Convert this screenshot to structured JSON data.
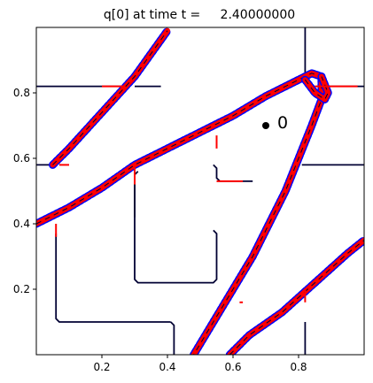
{
  "chart_data": {
    "type": "line",
    "title": "q[0] at time t =     2.40000000",
    "xlabel": "",
    "ylabel": "",
    "xlim": [
      0.0,
      1.0
    ],
    "ylim": [
      0.0,
      1.0
    ],
    "x_ticks": [
      0.2,
      0.4,
      0.6,
      0.8
    ],
    "x_tick_labels": [
      "0.2",
      "0.4",
      "0.6",
      "0.8"
    ],
    "y_ticks": [
      0.2,
      0.4,
      0.6,
      0.8
    ],
    "y_tick_labels": [
      "0.2",
      "0.4",
      "0.6",
      "0.8"
    ],
    "grid": false,
    "colors": {
      "contour_dark": "#000033",
      "contour_blue": "#0000ff",
      "contour_red": "#ff0000",
      "axes": "#000000"
    },
    "series": [
      {
        "style": "dark",
        "paths": [
          [
            [
              0.0,
              0.82
            ],
            [
              0.27,
              0.82
            ]
          ],
          [
            [
              0.3,
              0.82
            ],
            [
              0.38,
              0.82
            ]
          ],
          [
            [
              0.82,
              1.0
            ],
            [
              0.82,
              0.86
            ]
          ],
          [
            [
              0.89,
              0.82
            ],
            [
              1.0,
              0.82
            ]
          ],
          [
            [
              0.81,
              0.58
            ],
            [
              1.0,
              0.58
            ]
          ],
          [
            [
              0.54,
              0.38
            ],
            [
              0.55,
              0.37
            ],
            [
              0.55,
              0.23
            ],
            [
              0.54,
              0.22
            ],
            [
              0.31,
              0.22
            ],
            [
              0.3,
              0.23
            ],
            [
              0.3,
              0.57
            ]
          ],
          [
            [
              0.54,
              0.58
            ],
            [
              0.55,
              0.57
            ],
            [
              0.55,
              0.54
            ],
            [
              0.56,
              0.53
            ],
            [
              0.66,
              0.53
            ]
          ],
          [
            [
              0.31,
              0.56
            ],
            [
              0.3,
              0.55
            ],
            [
              0.3,
              0.42
            ]
          ],
          [
            [
              0.41,
              0.1
            ],
            [
              0.07,
              0.1
            ],
            [
              0.06,
              0.11
            ],
            [
              0.06,
              0.37
            ]
          ],
          [
            [
              0.82,
              0.0
            ],
            [
              0.82,
              0.1
            ]
          ],
          [
            [
              0.41,
              0.1
            ],
            [
              0.42,
              0.09
            ],
            [
              0.42,
              0.0
            ]
          ],
          [
            [
              0.0,
              0.58
            ],
            [
              0.05,
              0.58
            ],
            [
              0.1,
              0.62
            ],
            [
              0.2,
              0.73
            ],
            [
              0.29,
              0.84
            ],
            [
              0.4,
              0.99
            ]
          ]
        ]
      },
      {
        "style": "band",
        "paths": [
          [
            [
              0.0,
              0.4
            ],
            [
              0.1,
              0.45
            ],
            [
              0.2,
              0.51
            ],
            [
              0.3,
              0.58
            ],
            [
              0.4,
              0.63
            ],
            [
              0.5,
              0.68
            ],
            [
              0.6,
              0.73
            ],
            [
              0.7,
              0.79
            ],
            [
              0.78,
              0.83
            ],
            [
              0.84,
              0.86
            ],
            [
              0.87,
              0.85
            ],
            [
              0.87,
              0.78
            ],
            [
              0.84,
              0.7
            ],
            [
              0.8,
              0.6
            ],
            [
              0.76,
              0.5
            ],
            [
              0.71,
              0.4
            ],
            [
              0.66,
              0.3
            ],
            [
              0.6,
              0.2
            ],
            [
              0.54,
              0.1
            ],
            [
              0.48,
              0.0
            ]
          ],
          [
            [
              0.82,
              0.84
            ],
            [
              0.85,
              0.8
            ],
            [
              0.88,
              0.78
            ],
            [
              0.89,
              0.8
            ],
            [
              0.87,
              0.85
            ]
          ],
          [
            [
              0.05,
              0.58
            ],
            [
              0.1,
              0.63
            ],
            [
              0.2,
              0.74
            ],
            [
              0.3,
              0.85
            ],
            [
              0.4,
              0.99
            ]
          ],
          [
            [
              0.59,
              0.0
            ],
            [
              0.65,
              0.06
            ],
            [
              0.75,
              0.13
            ],
            [
              0.85,
              0.22
            ],
            [
              0.95,
              0.31
            ],
            [
              1.0,
              0.35
            ]
          ]
        ]
      },
      {
        "style": "red",
        "paths": [
          [
            [
              0.2,
              0.82
            ],
            [
              0.27,
              0.82
            ]
          ],
          [
            [
              0.85,
              0.82
            ],
            [
              0.98,
              0.82
            ]
          ],
          [
            [
              0.55,
              0.53
            ],
            [
              0.63,
              0.53
            ]
          ],
          [
            [
              0.07,
              0.58
            ],
            [
              0.1,
              0.58
            ]
          ],
          [
            [
              0.55,
              0.67
            ],
            [
              0.55,
              0.63
            ]
          ],
          [
            [
              0.3,
              0.58
            ],
            [
              0.3,
              0.52
            ]
          ],
          [
            [
              0.06,
              0.4
            ],
            [
              0.06,
              0.36
            ]
          ],
          [
            [
              0.62,
              0.16
            ],
            [
              0.63,
              0.16
            ]
          ],
          [
            [
              0.82,
              0.2
            ],
            [
              0.82,
              0.16
            ]
          ]
        ]
      }
    ],
    "annotations": [
      {
        "text": "0",
        "x": 0.7,
        "y": 0.7
      }
    ]
  }
}
